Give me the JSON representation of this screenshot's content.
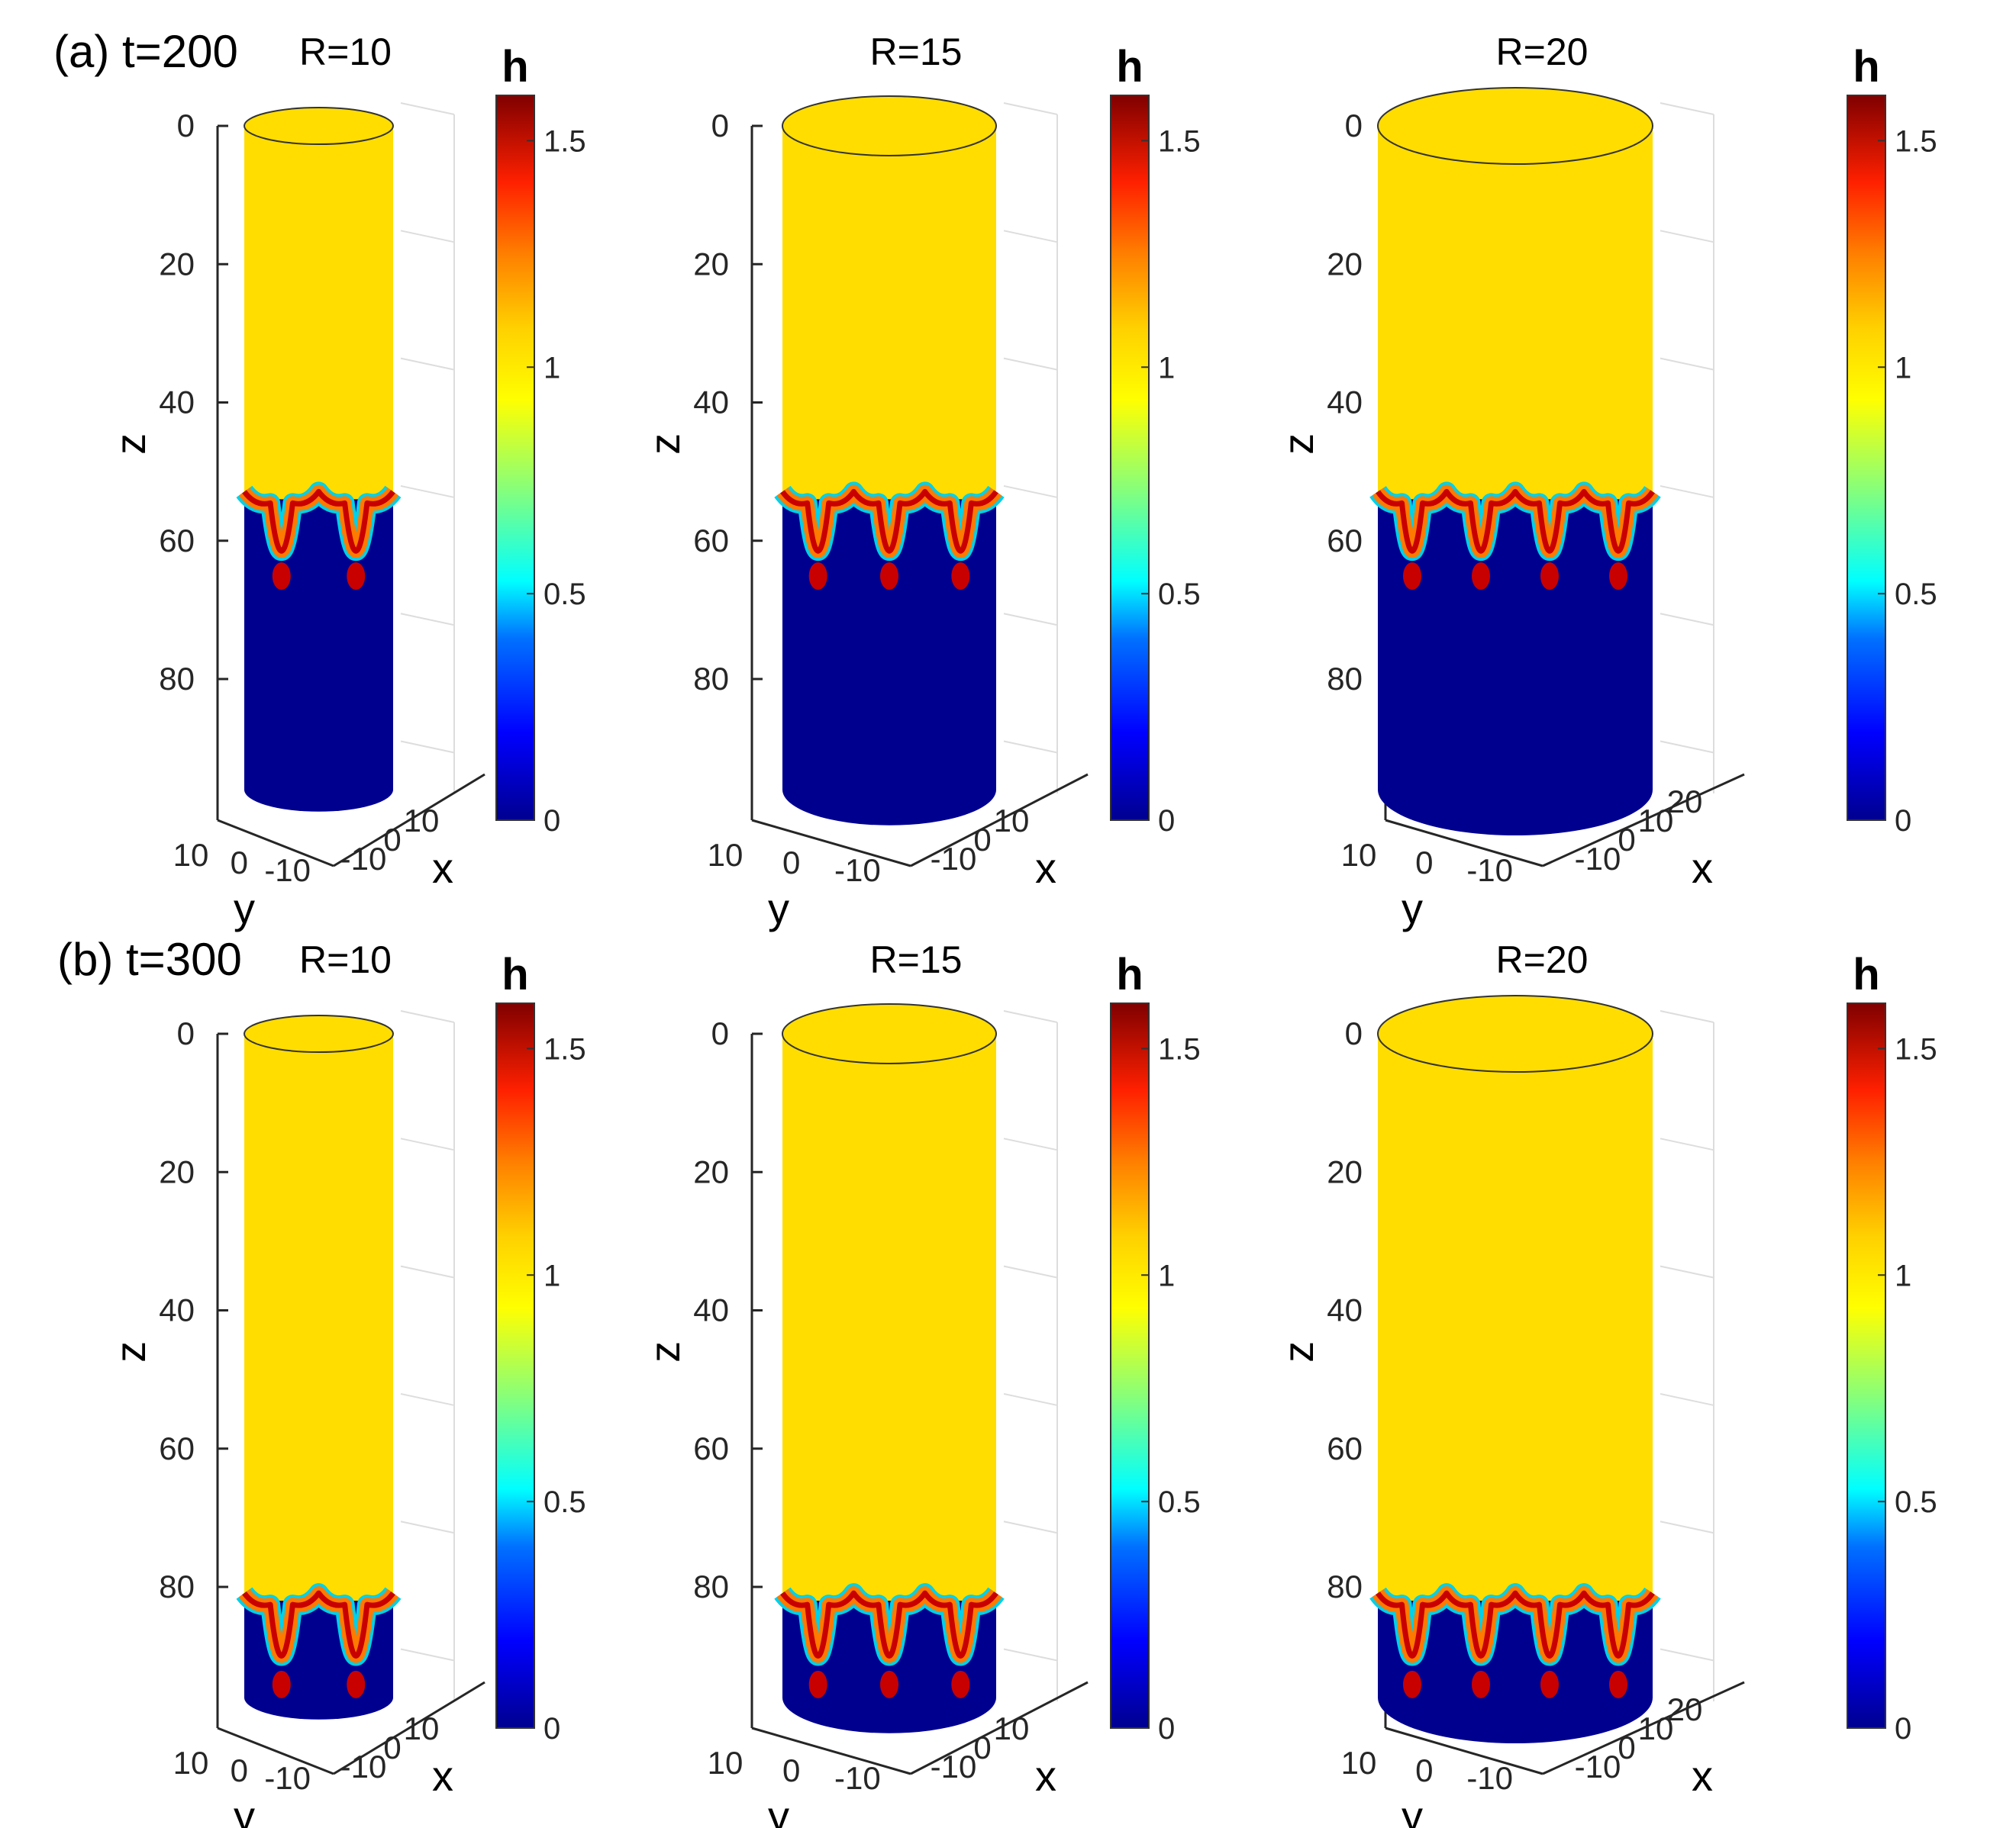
{
  "chart_data": {
    "type": "surface3d",
    "description_rows": [
      {
        "label": "(a) t=200",
        "time": 200
      },
      {
        "label": "(b) t=300",
        "time": 300
      }
    ],
    "colormap": "jet",
    "colorbar": {
      "label": "h",
      "min": 0,
      "max": 1.6,
      "ticks": [
        0,
        0.5,
        1,
        1.5
      ],
      "tick_labels": [
        "0",
        "0.5",
        "1",
        "1.5"
      ]
    },
    "axes": {
      "xlabel": "x",
      "ylabel": "y",
      "zlabel": "z",
      "zlim": [
        0,
        96
      ],
      "z_direction": "reversed",
      "z_ticks": [
        0,
        20,
        40,
        60,
        80
      ],
      "z_tick_labels": [
        "0",
        "20",
        "40",
        "60",
        "80"
      ]
    },
    "panels": [
      {
        "row": 0,
        "title": "R=10",
        "R": 10,
        "film_h": 1.0,
        "front_z": 54,
        "finger_tip_z": 64,
        "fingers": 2,
        "y_tick_labels": [
          "10",
          "0",
          "-10"
        ],
        "x_tick_labels": [
          "-10",
          "0",
          "10"
        ]
      },
      {
        "row": 0,
        "title": "R=15",
        "R": 15,
        "film_h": 1.0,
        "front_z": 54,
        "finger_tip_z": 64,
        "fingers": 3,
        "y_tick_labels": [
          "10",
          "0",
          "-10"
        ],
        "x_tick_labels": [
          "-10",
          "0",
          "10"
        ]
      },
      {
        "row": 0,
        "title": "R=20",
        "R": 20,
        "film_h": 1.0,
        "front_z": 54,
        "finger_tip_z": 64,
        "fingers": 4,
        "y_tick_labels": [
          "10",
          "0",
          "-10"
        ],
        "x_tick_labels": [
          "-10",
          "0",
          "10",
          "20"
        ]
      },
      {
        "row": 1,
        "title": "R=10",
        "R": 10,
        "film_h": 1.0,
        "front_z": 82,
        "finger_tip_z": 93,
        "fingers": 2,
        "y_tick_labels": [
          "10",
          "0",
          "-10"
        ],
        "x_tick_labels": [
          "-10",
          "0",
          "10"
        ]
      },
      {
        "row": 1,
        "title": "R=15",
        "R": 15,
        "film_h": 1.0,
        "front_z": 82,
        "finger_tip_z": 93,
        "fingers": 3,
        "y_tick_labels": [
          "10",
          "0",
          "-10"
        ],
        "x_tick_labels": [
          "-10",
          "0",
          "10"
        ]
      },
      {
        "row": 1,
        "title": "R=20",
        "R": 20,
        "film_h": 1.0,
        "front_z": 82,
        "finger_tip_z": 93,
        "fingers": 4,
        "y_tick_labels": [
          "10",
          "0",
          "-10"
        ],
        "x_tick_labels": [
          "-10",
          "0",
          "10",
          "20"
        ]
      }
    ]
  },
  "colors": {
    "film": "#FFDD00",
    "dry": "#00008F",
    "rim_hot": "#C80000",
    "rim_warm": "#FF7A00",
    "rim_cool": "#00D0E8"
  }
}
